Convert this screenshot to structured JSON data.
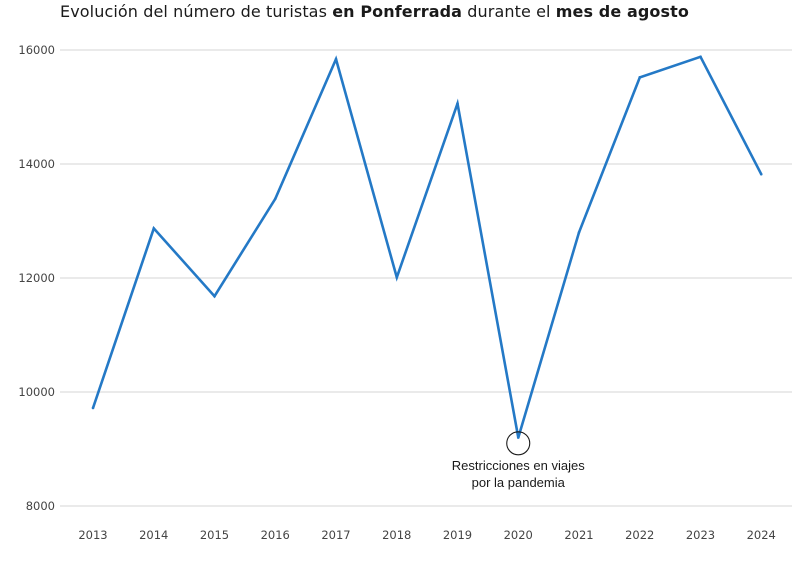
{
  "title": {
    "part1": "Evolución del número de turistas ",
    "bold1": "en Ponferrada",
    "part2": " durante el ",
    "bold2": "mes de agosto"
  },
  "colors": {
    "line": "#2479c6",
    "grid": "#d4d4d4",
    "tick_text": "#444444",
    "annotation": "#1a1a1a"
  },
  "chart_data": {
    "type": "line",
    "title": "Evolución del número de turistas en Ponferrada durante el mes de agosto",
    "xlabel": "",
    "ylabel": "",
    "x": [
      "2013",
      "2014",
      "2015",
      "2016",
      "2017",
      "2018",
      "2019",
      "2020",
      "2021",
      "2022",
      "2023",
      "2024"
    ],
    "series": [
      {
        "values": [
          9720,
          12870,
          11680,
          13390,
          15840,
          12010,
          15060,
          9200,
          12800,
          15520,
          15880,
          13820
        ]
      }
    ],
    "ylim": [
      8000,
      16000
    ],
    "yticks": [
      8000,
      10000,
      12000,
      14000,
      16000
    ],
    "grid": true,
    "legend": "none",
    "annotation": {
      "x": "2020",
      "y": 9100,
      "line1": "Restricciones en viajes",
      "line2": "por la pandemia"
    }
  }
}
